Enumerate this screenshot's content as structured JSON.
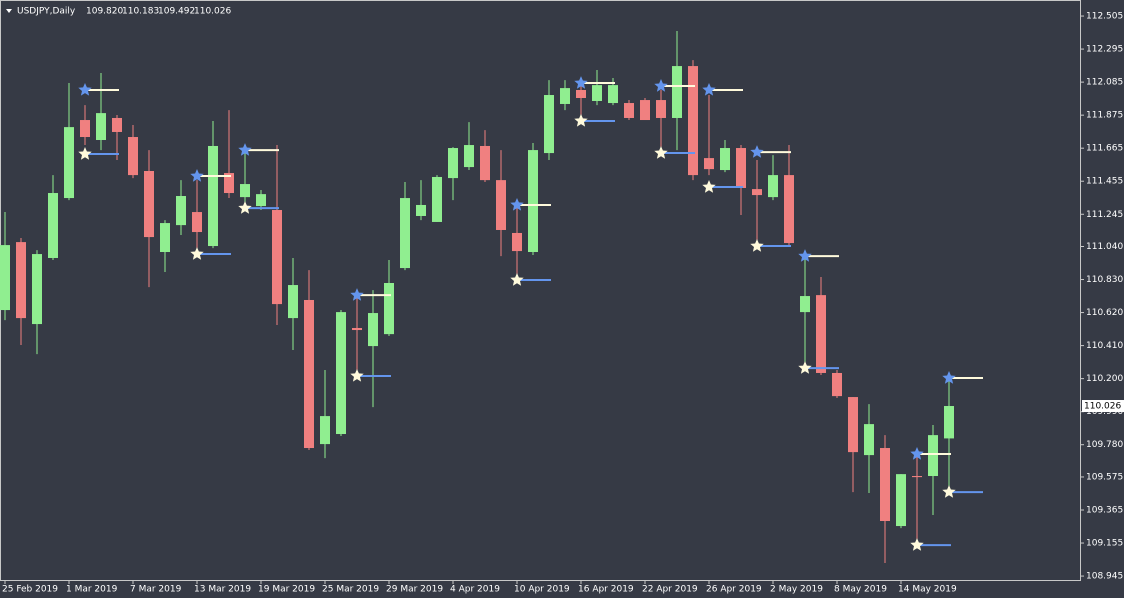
{
  "chart_data": {
    "type": "candlestick",
    "title": "USDJPY,Daily",
    "last_labels": [
      "109.820",
      "110.183",
      "109.492",
      "110.026"
    ],
    "categories": [
      "25 Feb 2019",
      null,
      null,
      null,
      "1 Mar 2019",
      null,
      null,
      null,
      "7 Mar 2019",
      null,
      null,
      null,
      "13 Mar 2019",
      null,
      null,
      null,
      "19 Mar 2019",
      null,
      null,
      null,
      "25 Mar 2019",
      null,
      null,
      null,
      "29 Mar 2019",
      null,
      null,
      null,
      "4 Apr 2019",
      null,
      null,
      null,
      "10 Apr 2019",
      null,
      null,
      null,
      "16 Apr 2019",
      null,
      null,
      null,
      "22 Apr 2019",
      null,
      null,
      null,
      "26 Apr 2019",
      null,
      null,
      null,
      "2 May 2019",
      null,
      null,
      null,
      "8 May 2019",
      null,
      null,
      null,
      "14 May 2019",
      null,
      null,
      null
    ],
    "open": [
      110.636,
      111.068,
      110.547,
      110.967,
      111.348,
      111.844,
      111.717,
      111.857,
      111.736,
      111.52,
      111.005,
      111.176,
      111.259,
      111.043,
      111.507,
      111.354,
      111.297,
      111.272,
      110.585,
      110.7,
      109.784,
      109.848,
      110.522,
      110.407,
      110.483,
      110.903,
      111.234,
      111.196,
      111.475,
      111.545,
      111.679,
      111.462,
      111.126,
      111.005,
      111.634,
      111.946,
      112.035,
      111.965,
      111.952,
      111.952,
      111.971,
      111.971,
      111.857,
      112.187,
      111.602,
      111.526,
      111.666,
      111.405,
      111.354,
      111.494,
      110.623,
      110.731,
      110.236,
      110.083,
      109.714,
      109.759,
      109.263,
      109.581,
      109.581,
      109.82
    ],
    "high": [
      111.259,
      111.094,
      111.017,
      111.494,
      112.079,
      111.939,
      112.143,
      111.876,
      111.812,
      111.653,
      111.208,
      111.462,
      111.462,
      111.838,
      111.907,
      111.653,
      111.399,
      111.685,
      110.967,
      110.89,
      110.255,
      110.636,
      110.731,
      110.763,
      110.954,
      111.45,
      111.462,
      111.494,
      111.672,
      111.831,
      111.78,
      111.653,
      111.335,
      111.698,
      112.098,
      112.098,
      112.098,
      112.162,
      112.111,
      111.971,
      111.984,
      112.035,
      112.41,
      112.225,
      112.003,
      111.717,
      111.685,
      111.59,
      111.621,
      111.685,
      110.979,
      110.846,
      110.255,
      110.083,
      110.038,
      109.841,
      109.593,
      109.746,
      109.905,
      110.183
    ],
    "low": [
      110.572,
      110.414,
      110.356,
      110.954,
      111.335,
      111.685,
      111.653,
      111.59,
      111.475,
      110.782,
      110.878,
      111.113,
      111.005,
      111.03,
      111.348,
      111.272,
      111.272,
      110.541,
      110.382,
      109.746,
      109.695,
      109.835,
      110.223,
      110.019,
      110.471,
      110.89,
      111.208,
      111.196,
      111.335,
      111.526,
      111.45,
      110.979,
      110.827,
      110.986,
      111.59,
      111.907,
      111.844,
      111.939,
      111.939,
      111.844,
      111.844,
      111.653,
      111.653,
      111.462,
      111.494,
      111.513,
      111.24,
      111.062,
      111.335,
      111.049,
      110.255,
      110.223,
      110.077,
      109.479,
      109.473,
      109.028,
      109.25,
      109.123,
      109.333,
      109.492
    ],
    "close": [
      111.049,
      110.585,
      110.992,
      111.38,
      111.799,
      111.736,
      111.888,
      111.768,
      111.494,
      111.1,
      111.189,
      111.361,
      111.132,
      111.679,
      111.38,
      111.437,
      111.373,
      110.674,
      110.795,
      109.759,
      109.962,
      110.623,
      110.509,
      110.617,
      110.808,
      111.348,
      111.304,
      111.482,
      111.666,
      111.685,
      111.462,
      111.145,
      111.011,
      111.653,
      112.003,
      112.047,
      111.984,
      112.066,
      112.066,
      111.857,
      111.844,
      111.857,
      112.187,
      111.494,
      111.532,
      111.666,
      111.412,
      111.367,
      111.494,
      111.062,
      110.725,
      110.236,
      110.089,
      109.733,
      109.911,
      109.295,
      109.593,
      109.574,
      109.841,
      110.026
    ],
    "top_stars": [
      null,
      null,
      null,
      null,
      null,
      112.035,
      null,
      null,
      null,
      null,
      null,
      null,
      111.488,
      null,
      null,
      111.653,
      null,
      null,
      null,
      null,
      null,
      null,
      110.731,
      null,
      null,
      null,
      null,
      null,
      null,
      null,
      null,
      null,
      111.304,
      null,
      null,
      null,
      112.079,
      null,
      null,
      null,
      null,
      112.06,
      null,
      null,
      112.035,
      null,
      null,
      111.64,
      null,
      null,
      110.979,
      null,
      null,
      null,
      null,
      null,
      null,
      109.721,
      null,
      110.204
    ],
    "bottom_stars": [
      null,
      null,
      null,
      null,
      null,
      111.628,
      null,
      null,
      null,
      null,
      null,
      null,
      110.992,
      null,
      null,
      111.284,
      null,
      null,
      null,
      null,
      null,
      null,
      110.217,
      null,
      null,
      null,
      null,
      null,
      null,
      null,
      null,
      null,
      110.827,
      null,
      null,
      null,
      111.838,
      null,
      null,
      null,
      null,
      111.634,
      null,
      null,
      111.418,
      null,
      null,
      111.043,
      null,
      null,
      110.267,
      null,
      null,
      null,
      null,
      null,
      null,
      109.142,
      null,
      109.479
    ],
    "up_color": "#90ee90",
    "down_color": "#f08080",
    "top_star_color": "#6495ed",
    "bottom_star_color": "#fffadc",
    "ylim": [
      108.92,
      112.607
    ],
    "yticks": [
      112.505,
      112.295,
      112.085,
      111.875,
      111.665,
      111.455,
      111.245,
      {
        "value": 111.04,
        "label": "111.040"
      },
      {
        "value": 110.83,
        "label": "110.830"
      },
      {
        "value": 110.62,
        "label": "110.620"
      },
      {
        "value": 110.41,
        "label": "110.410"
      },
      {
        "value": 110.2,
        "label": "110.200"
      },
      {
        "value": 109.99,
        "label": "109.990"
      },
      {
        "value": 109.78,
        "label": "109.780"
      },
      109.575,
      109.365,
      109.155,
      108.945
    ],
    "grid": false
  }
}
